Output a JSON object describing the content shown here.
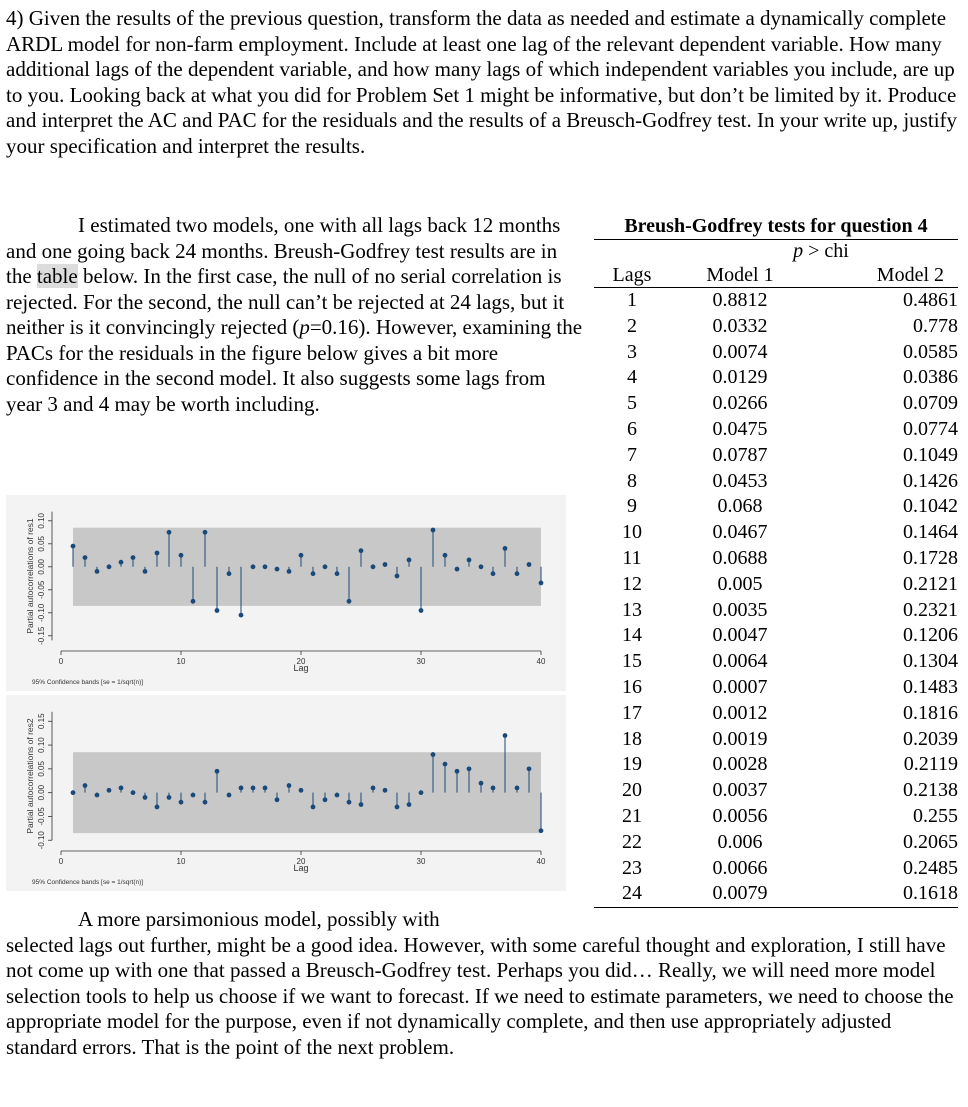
{
  "question": "4) Given the results of the previous question, transform the data as needed and estimate a dynamically complete ARDL model for non-farm employment. Include at least one lag of the relevant dependent variable. How many additional lags of the dependent variable, and how many lags of which independent variables you include, are up to you. Looking back at what you did for Problem Set 1 might be informative, but don’t be limited by it. Produce and interpret the AC and PAC for the residuals and the results of a Breusch-Godfrey test. In your write up, justify your specification and interpret the results.",
  "para1": {
    "a": "I estimated two models, one with all lags back 12 months and one going back 24 months. Breush-Godfrey test results are in the ",
    "highlight": "table",
    "b": " below. In the first case, the null of no serial correlation is rejected. For the second, the null can’t be rejected at 24 lags, but it neither is it convincingly rejected (",
    "p_symbol": "p",
    "c": "=0.16). However, examining the PACs for the residuals in the figure below gives a bit more confidence in the second model. It also suggests some lags from year 3 and 4 may be worth including."
  },
  "para2": {
    "a": "A more parsimonious model, possibly with",
    "b": "selected lags out further, might be a good idea. However, with some careful thought and exploration, I still have not come up with one that passed a Breusch-Godfrey test. Perhaps you did… Really, we will need more model selection tools to help us choose if we want to forecast. If we need to estimate parameters, we need to choose the appropriate model for the purpose, even if not dynamically complete, and then use appropriately adjusted standard errors. That is the point of the next problem."
  },
  "table": {
    "title": "Breush-Godfrey tests for question 4",
    "subheader_p": "p",
    "subheader_rest": " > chi",
    "columns": [
      "Lags",
      "Model 1",
      "Model 2"
    ],
    "rows": [
      [
        "1",
        "0.8812",
        "0.4861"
      ],
      [
        "2",
        "0.0332",
        "0.778"
      ],
      [
        "3",
        "0.0074",
        "0.0585"
      ],
      [
        "4",
        "0.0129",
        "0.0386"
      ],
      [
        "5",
        "0.0266",
        "0.0709"
      ],
      [
        "6",
        "0.0475",
        "0.0774"
      ],
      [
        "7",
        "0.0787",
        "0.1049"
      ],
      [
        "8",
        "0.0453",
        "0.1426"
      ],
      [
        "9",
        "0.068",
        "0.1042"
      ],
      [
        "10",
        "0.0467",
        "0.1464"
      ],
      [
        "11",
        "0.0688",
        "0.1728"
      ],
      [
        "12",
        "0.005",
        "0.2121"
      ],
      [
        "13",
        "0.0035",
        "0.2321"
      ],
      [
        "14",
        "0.0047",
        "0.1206"
      ],
      [
        "15",
        "0.0064",
        "0.1304"
      ],
      [
        "16",
        "0.0007",
        "0.1483"
      ],
      [
        "17",
        "0.0012",
        "0.1816"
      ],
      [
        "18",
        "0.0019",
        "0.2039"
      ],
      [
        "19",
        "0.0028",
        "0.2119"
      ],
      [
        "20",
        "0.0037",
        "0.2138"
      ],
      [
        "21",
        "0.0056",
        "0.255"
      ],
      [
        "22",
        "0.006",
        "0.2065"
      ],
      [
        "23",
        "0.0066",
        "0.2485"
      ],
      [
        "24",
        "0.0079",
        "0.1618"
      ]
    ]
  },
  "chart_data": [
    {
      "type": "scatter",
      "title": "",
      "xlabel": "Lag",
      "ylabel": "Partial autocorrelations of res1",
      "note": "95% Confidence bands [se = 1/sqrt(n)]",
      "xticks": [
        0,
        10,
        20,
        30,
        40
      ],
      "yticks": [
        -0.15,
        -0.1,
        -0.05,
        0.0,
        0.05,
        0.1
      ],
      "ytick_labels": [
        "-0.15",
        "-0.10",
        "-0.05",
        "0.00",
        "0.05",
        "0.10"
      ],
      "xlim": [
        0,
        40
      ],
      "ylim": [
        -0.17,
        0.13
      ],
      "band": 0.085,
      "x": [
        1,
        2,
        3,
        4,
        5,
        6,
        7,
        8,
        9,
        10,
        11,
        12,
        13,
        14,
        15,
        16,
        17,
        18,
        19,
        20,
        21,
        22,
        23,
        24,
        25,
        26,
        27,
        28,
        29,
        30,
        31,
        32,
        33,
        34,
        35,
        36,
        37,
        38,
        39,
        40
      ],
      "values": [
        0.045,
        0.02,
        -0.01,
        0.0,
        0.01,
        0.02,
        -0.01,
        0.03,
        0.075,
        0.025,
        -0.075,
        0.075,
        -0.095,
        -0.015,
        -0.105,
        0.0,
        0.0,
        -0.005,
        -0.01,
        0.025,
        -0.015,
        0.0,
        -0.015,
        -0.075,
        0.035,
        0.0,
        0.005,
        -0.02,
        0.015,
        -0.095,
        0.08,
        0.025,
        -0.005,
        0.015,
        0.0,
        -0.015,
        0.04,
        -0.015,
        0.005,
        -0.035
      ]
    },
    {
      "type": "scatter",
      "title": "",
      "xlabel": "Lag",
      "ylabel": "Partial autocorrelations of res2",
      "note": "95% Confidence bands [se = 1/sqrt(n)]",
      "xticks": [
        0,
        10,
        20,
        30,
        40
      ],
      "yticks": [
        -0.1,
        -0.05,
        0.0,
        0.05,
        0.1,
        0.15
      ],
      "ytick_labels": [
        "-0.10",
        "-0.05",
        "0.00",
        "0.05",
        "0.10",
        "0.15"
      ],
      "xlim": [
        0,
        40
      ],
      "ylim": [
        -0.11,
        0.18
      ],
      "band": 0.085,
      "x": [
        1,
        2,
        3,
        4,
        5,
        6,
        7,
        8,
        9,
        10,
        11,
        12,
        13,
        14,
        15,
        16,
        17,
        18,
        19,
        20,
        21,
        22,
        23,
        24,
        25,
        26,
        27,
        28,
        29,
        30,
        31,
        32,
        33,
        34,
        35,
        36,
        37,
        38,
        39,
        40
      ],
      "values": [
        0.0,
        0.015,
        -0.005,
        0.005,
        0.01,
        0.0,
        -0.01,
        -0.03,
        -0.01,
        -0.02,
        -0.005,
        -0.02,
        0.045,
        -0.005,
        0.01,
        0.01,
        0.01,
        -0.015,
        0.015,
        0.005,
        -0.03,
        -0.015,
        -0.005,
        -0.02,
        -0.025,
        0.01,
        0.005,
        -0.03,
        -0.025,
        0.0,
        0.08,
        0.06,
        0.045,
        0.05,
        0.02,
        0.01,
        0.12,
        0.01,
        0.05,
        -0.08
      ]
    }
  ]
}
